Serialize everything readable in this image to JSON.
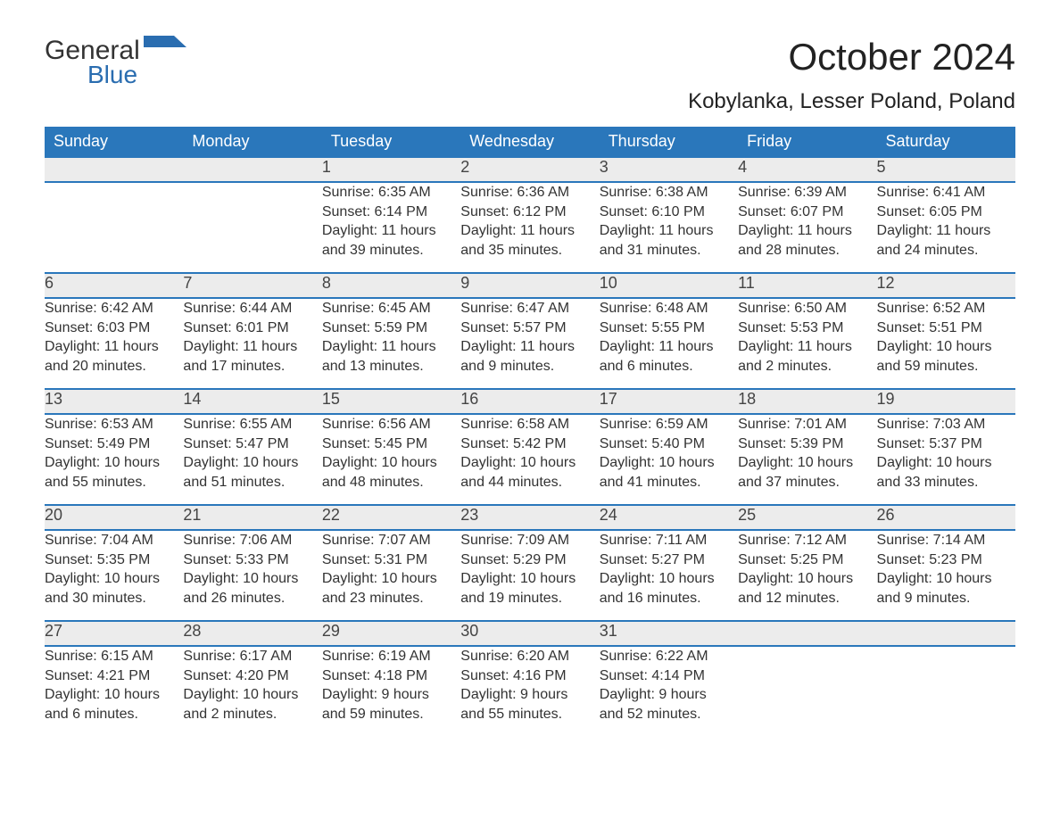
{
  "brand": {
    "main": "General",
    "sub": "Blue"
  },
  "title": "October 2024",
  "location": "Kobylanka, Lesser Poland, Poland",
  "colors": {
    "header_bg": "#2a77bb",
    "header_text": "#ffffff",
    "daynum_bg": "#ececec",
    "border": "#2a77bb",
    "text": "#333333",
    "brand_accent": "#2a6db0"
  },
  "day_headers": [
    "Sunday",
    "Monday",
    "Tuesday",
    "Wednesday",
    "Thursday",
    "Friday",
    "Saturday"
  ],
  "weeks": [
    [
      null,
      null,
      {
        "n": "1",
        "sr": "Sunrise: 6:35 AM",
        "ss": "Sunset: 6:14 PM",
        "d1": "Daylight: 11 hours",
        "d2": "and 39 minutes."
      },
      {
        "n": "2",
        "sr": "Sunrise: 6:36 AM",
        "ss": "Sunset: 6:12 PM",
        "d1": "Daylight: 11 hours",
        "d2": "and 35 minutes."
      },
      {
        "n": "3",
        "sr": "Sunrise: 6:38 AM",
        "ss": "Sunset: 6:10 PM",
        "d1": "Daylight: 11 hours",
        "d2": "and 31 minutes."
      },
      {
        "n": "4",
        "sr": "Sunrise: 6:39 AM",
        "ss": "Sunset: 6:07 PM",
        "d1": "Daylight: 11 hours",
        "d2": "and 28 minutes."
      },
      {
        "n": "5",
        "sr": "Sunrise: 6:41 AM",
        "ss": "Sunset: 6:05 PM",
        "d1": "Daylight: 11 hours",
        "d2": "and 24 minutes."
      }
    ],
    [
      {
        "n": "6",
        "sr": "Sunrise: 6:42 AM",
        "ss": "Sunset: 6:03 PM",
        "d1": "Daylight: 11 hours",
        "d2": "and 20 minutes."
      },
      {
        "n": "7",
        "sr": "Sunrise: 6:44 AM",
        "ss": "Sunset: 6:01 PM",
        "d1": "Daylight: 11 hours",
        "d2": "and 17 minutes."
      },
      {
        "n": "8",
        "sr": "Sunrise: 6:45 AM",
        "ss": "Sunset: 5:59 PM",
        "d1": "Daylight: 11 hours",
        "d2": "and 13 minutes."
      },
      {
        "n": "9",
        "sr": "Sunrise: 6:47 AM",
        "ss": "Sunset: 5:57 PM",
        "d1": "Daylight: 11 hours",
        "d2": "and 9 minutes."
      },
      {
        "n": "10",
        "sr": "Sunrise: 6:48 AM",
        "ss": "Sunset: 5:55 PM",
        "d1": "Daylight: 11 hours",
        "d2": "and 6 minutes."
      },
      {
        "n": "11",
        "sr": "Sunrise: 6:50 AM",
        "ss": "Sunset: 5:53 PM",
        "d1": "Daylight: 11 hours",
        "d2": "and 2 minutes."
      },
      {
        "n": "12",
        "sr": "Sunrise: 6:52 AM",
        "ss": "Sunset: 5:51 PM",
        "d1": "Daylight: 10 hours",
        "d2": "and 59 minutes."
      }
    ],
    [
      {
        "n": "13",
        "sr": "Sunrise: 6:53 AM",
        "ss": "Sunset: 5:49 PM",
        "d1": "Daylight: 10 hours",
        "d2": "and 55 minutes."
      },
      {
        "n": "14",
        "sr": "Sunrise: 6:55 AM",
        "ss": "Sunset: 5:47 PM",
        "d1": "Daylight: 10 hours",
        "d2": "and 51 minutes."
      },
      {
        "n": "15",
        "sr": "Sunrise: 6:56 AM",
        "ss": "Sunset: 5:45 PM",
        "d1": "Daylight: 10 hours",
        "d2": "and 48 minutes."
      },
      {
        "n": "16",
        "sr": "Sunrise: 6:58 AM",
        "ss": "Sunset: 5:42 PM",
        "d1": "Daylight: 10 hours",
        "d2": "and 44 minutes."
      },
      {
        "n": "17",
        "sr": "Sunrise: 6:59 AM",
        "ss": "Sunset: 5:40 PM",
        "d1": "Daylight: 10 hours",
        "d2": "and 41 minutes."
      },
      {
        "n": "18",
        "sr": "Sunrise: 7:01 AM",
        "ss": "Sunset: 5:39 PM",
        "d1": "Daylight: 10 hours",
        "d2": "and 37 minutes."
      },
      {
        "n": "19",
        "sr": "Sunrise: 7:03 AM",
        "ss": "Sunset: 5:37 PM",
        "d1": "Daylight: 10 hours",
        "d2": "and 33 minutes."
      }
    ],
    [
      {
        "n": "20",
        "sr": "Sunrise: 7:04 AM",
        "ss": "Sunset: 5:35 PM",
        "d1": "Daylight: 10 hours",
        "d2": "and 30 minutes."
      },
      {
        "n": "21",
        "sr": "Sunrise: 7:06 AM",
        "ss": "Sunset: 5:33 PM",
        "d1": "Daylight: 10 hours",
        "d2": "and 26 minutes."
      },
      {
        "n": "22",
        "sr": "Sunrise: 7:07 AM",
        "ss": "Sunset: 5:31 PM",
        "d1": "Daylight: 10 hours",
        "d2": "and 23 minutes."
      },
      {
        "n": "23",
        "sr": "Sunrise: 7:09 AM",
        "ss": "Sunset: 5:29 PM",
        "d1": "Daylight: 10 hours",
        "d2": "and 19 minutes."
      },
      {
        "n": "24",
        "sr": "Sunrise: 7:11 AM",
        "ss": "Sunset: 5:27 PM",
        "d1": "Daylight: 10 hours",
        "d2": "and 16 minutes."
      },
      {
        "n": "25",
        "sr": "Sunrise: 7:12 AM",
        "ss": "Sunset: 5:25 PM",
        "d1": "Daylight: 10 hours",
        "d2": "and 12 minutes."
      },
      {
        "n": "26",
        "sr": "Sunrise: 7:14 AM",
        "ss": "Sunset: 5:23 PM",
        "d1": "Daylight: 10 hours",
        "d2": "and 9 minutes."
      }
    ],
    [
      {
        "n": "27",
        "sr": "Sunrise: 6:15 AM",
        "ss": "Sunset: 4:21 PM",
        "d1": "Daylight: 10 hours",
        "d2": "and 6 minutes."
      },
      {
        "n": "28",
        "sr": "Sunrise: 6:17 AM",
        "ss": "Sunset: 4:20 PM",
        "d1": "Daylight: 10 hours",
        "d2": "and 2 minutes."
      },
      {
        "n": "29",
        "sr": "Sunrise: 6:19 AM",
        "ss": "Sunset: 4:18 PM",
        "d1": "Daylight: 9 hours",
        "d2": "and 59 minutes."
      },
      {
        "n": "30",
        "sr": "Sunrise: 6:20 AM",
        "ss": "Sunset: 4:16 PM",
        "d1": "Daylight: 9 hours",
        "d2": "and 55 minutes."
      },
      {
        "n": "31",
        "sr": "Sunrise: 6:22 AM",
        "ss": "Sunset: 4:14 PM",
        "d1": "Daylight: 9 hours",
        "d2": "and 52 minutes."
      },
      null,
      null
    ]
  ]
}
